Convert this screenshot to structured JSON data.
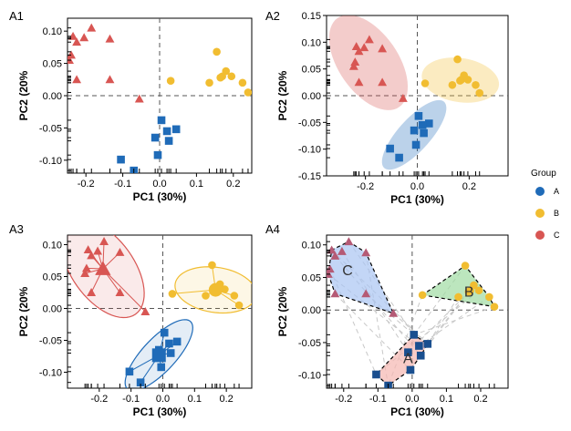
{
  "colors": {
    "A": "#1f6bb8",
    "B": "#f1bd31",
    "C": "#d85653"
  },
  "legend": {
    "title": "Group",
    "items": [
      "A",
      "B",
      "C"
    ]
  },
  "groups": {
    "A": [
      [
        0.005,
        -0.038
      ],
      [
        0.045,
        -0.052
      ],
      [
        -0.012,
        -0.065
      ],
      [
        0.025,
        -0.07
      ],
      [
        -0.105,
        -0.099
      ],
      [
        0.02,
        -0.055
      ],
      [
        -0.005,
        -0.092
      ],
      [
        -0.07,
        -0.116
      ]
    ],
    "B": [
      [
        0.155,
        0.068
      ],
      [
        0.18,
        0.038
      ],
      [
        0.17,
        0.03
      ],
      [
        0.165,
        0.028
      ],
      [
        0.195,
        0.03
      ],
      [
        0.225,
        0.02
      ],
      [
        0.135,
        0.02
      ],
      [
        0.03,
        0.023
      ],
      [
        0.24,
        0.005
      ]
    ],
    "C": [
      [
        -0.185,
        0.105
      ],
      [
        -0.235,
        0.092
      ],
      [
        -0.205,
        0.09
      ],
      [
        -0.225,
        0.083
      ],
      [
        -0.24,
        0.063
      ],
      [
        -0.245,
        0.055
      ],
      [
        -0.225,
        0.025
      ],
      [
        -0.135,
        0.088
      ],
      [
        -0.135,
        0.025
      ],
      [
        -0.055,
        -0.005
      ]
    ]
  },
  "chart_data": [
    {
      "panel": "A1",
      "type": "scatter",
      "xlabel": "PC1 (30%)",
      "ylabel": "PC2 (20%",
      "xlim": [
        -0.25,
        0.25
      ],
      "ylim": [
        -0.12,
        0.12
      ],
      "xticks": [
        -0.2,
        -0.1,
        0.0,
        0.1,
        0.2
      ],
      "xtick_labels": [
        "-0.2",
        "-0.1",
        "0.0",
        "0.1",
        "0.2"
      ],
      "yticks": [
        -0.1,
        -0.05,
        0.0,
        0.05,
        0.1
      ],
      "ytick_labels": [
        "-0.10",
        "-0.05",
        "0.00",
        "0.05",
        "0.10"
      ],
      "style": "points",
      "grid": false
    },
    {
      "panel": "A2",
      "type": "scatter",
      "xlabel": "PC1 (30%)",
      "ylabel": "PC2 (20%",
      "xlim": [
        -0.35,
        0.35
      ],
      "ylim": [
        -0.15,
        0.15
      ],
      "xticks": [
        -0.2,
        0.0,
        0.2
      ],
      "xtick_labels": [
        "-0.2",
        "0.0",
        "0.2"
      ],
      "yticks": [
        -0.15,
        -0.1,
        -0.05,
        0.0,
        0.05,
        0.1,
        0.15
      ],
      "ytick_labels": [
        "-0.15",
        "-0.10",
        "-0.05",
        "0.00",
        "0.05",
        "0.10",
        "0.15"
      ],
      "style": "ellipses",
      "grid": false
    },
    {
      "panel": "A3",
      "type": "scatter",
      "xlabel": "PC1 (30%)",
      "ylabel": "PC2 (20%",
      "xlim": [
        -0.3,
        0.28
      ],
      "ylim": [
        -0.125,
        0.115
      ],
      "xticks": [
        -0.2,
        -0.1,
        0.0,
        0.1,
        0.2
      ],
      "xtick_labels": [
        "-0.2",
        "-0.1",
        "0.0",
        "0.1",
        "0.2"
      ],
      "yticks": [
        -0.1,
        -0.05,
        0.0,
        0.05,
        0.1
      ],
      "ytick_labels": [
        "-0.10",
        "-0.05",
        "0.00",
        "0.05",
        "0.10"
      ],
      "style": "spider-ellipses",
      "grid": false
    },
    {
      "panel": "A4",
      "type": "scatter",
      "xlabel": "PC1 (30%)",
      "ylabel": "PC2 (20%",
      "xlim": [
        -0.25,
        0.28
      ],
      "ylim": [
        -0.12,
        0.115
      ],
      "xticks": [
        -0.2,
        -0.1,
        0.0,
        0.1,
        0.2
      ],
      "xtick_labels": [
        "-0.2",
        "-0.1",
        "0.0",
        "0.1",
        "0.2"
      ],
      "yticks": [
        -0.1,
        -0.05,
        0.0,
        0.05,
        0.1
      ],
      "ytick_labels": [
        "-0.10",
        "-0.05",
        "0.00",
        "0.05",
        "0.10"
      ],
      "style": "hulls",
      "grid": false,
      "group_labels": [
        "A",
        "B",
        "C"
      ]
    }
  ]
}
